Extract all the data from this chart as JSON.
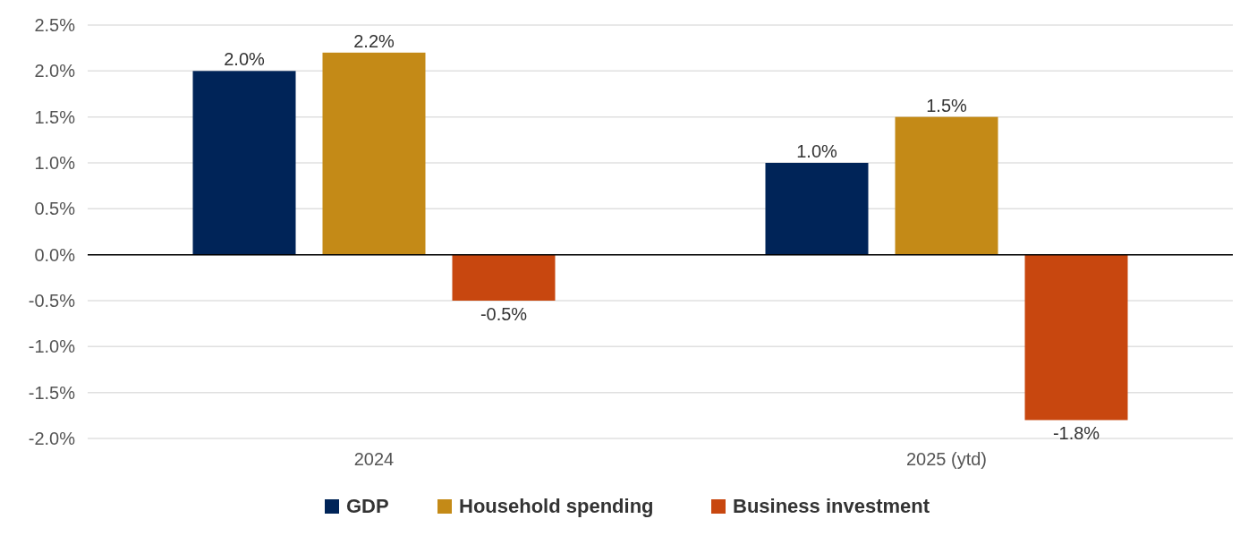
{
  "chart_data": {
    "type": "bar",
    "categories": [
      "2024",
      "2025 (ytd)"
    ],
    "series": [
      {
        "name": "GDP",
        "color": "#002458",
        "values": [
          2.0,
          1.0
        ],
        "value_labels": [
          "2.0%",
          "1.0%"
        ]
      },
      {
        "name": "Household spending",
        "color": "#c48a17",
        "values": [
          2.2,
          1.5
        ],
        "value_labels": [
          "2.2%",
          "1.5%"
        ]
      },
      {
        "name": "Business investment",
        "color": "#c8470f",
        "values": [
          -0.5,
          -1.8
        ],
        "value_labels": [
          "-0.5%",
          "-1.8%"
        ]
      }
    ],
    "ylim": [
      -2.0,
      2.5
    ],
    "yticks": [
      {
        "value": -2.0,
        "label": "-2.0%"
      },
      {
        "value": -1.5,
        "label": "-1.5%"
      },
      {
        "value": -1.0,
        "label": "-1.0%"
      },
      {
        "value": -0.5,
        "label": "-0.5%"
      },
      {
        "value": 0,
        "label": "0.0%"
      },
      {
        "value": 0.5,
        "label": "0.5%"
      },
      {
        "value": 1.0,
        "label": "1.0%"
      },
      {
        "value": 1.5,
        "label": "1.5%"
      },
      {
        "value": 2.0,
        "label": "2.0%"
      },
      {
        "value": 2.5,
        "label": "2.5%"
      }
    ],
    "grid": "y",
    "legend": "bottom"
  }
}
